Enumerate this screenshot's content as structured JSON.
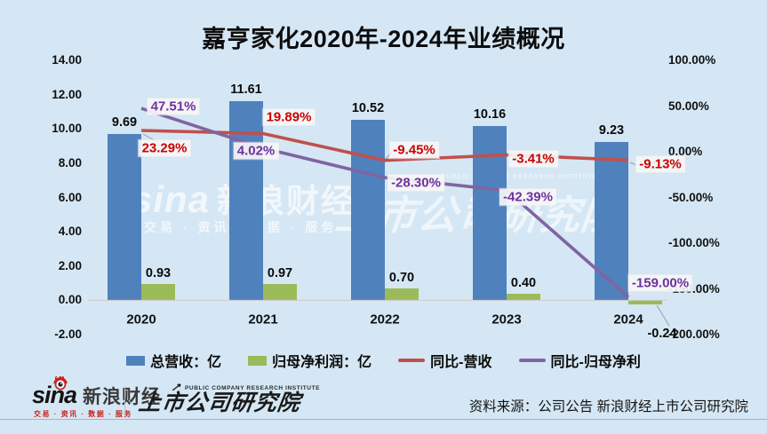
{
  "chart_data": {
    "type": "bar+line",
    "title": "嘉亨家化2020年-2024年业绩概况",
    "categories": [
      "2020",
      "2021",
      "2022",
      "2023",
      "2024"
    ],
    "left_axis": {
      "ticks": [
        "14.00",
        "12.00",
        "10.00",
        "8.00",
        "6.00",
        "4.00",
        "2.00",
        "0.00",
        "-2.00"
      ],
      "min": -2,
      "max": 14
    },
    "right_axis": {
      "ticks": [
        "100.00%",
        "50.00%",
        "0.00%",
        "-50.00%",
        "-100.00%",
        "-150.00%",
        "-200.00%"
      ],
      "min": -200,
      "max": 100
    },
    "legend_position": "bottom",
    "grid": false,
    "series": [
      {
        "name": "总营收：亿",
        "type": "bar",
        "axis": "left",
        "color": "#4f81bd",
        "values": [
          9.69,
          11.61,
          10.52,
          10.16,
          9.23
        ],
        "labels": [
          "9.69",
          "11.61",
          "10.52",
          "10.16",
          "9.23"
        ]
      },
      {
        "name": "归母净利润：亿",
        "type": "bar",
        "axis": "left",
        "color": "#9bbb59",
        "values": [
          0.93,
          0.97,
          0.7,
          0.4,
          -0.24
        ],
        "labels": [
          "0.93",
          "0.97",
          "0.70",
          "0.40",
          "-0.24"
        ]
      },
      {
        "name": "同比-营收",
        "type": "line",
        "axis": "right",
        "color": "#c0504d",
        "label_color": "#cc0000",
        "values": [
          23.29,
          19.89,
          -9.45,
          -3.41,
          -9.13
        ],
        "labels": [
          "23.29%",
          "19.89%",
          "-9.45%",
          "-3.41%",
          "-9.13%"
        ]
      },
      {
        "name": "同比-归母净利",
        "type": "line",
        "axis": "right",
        "color": "#8064a2",
        "label_color": "#7030a0",
        "values": [
          47.51,
          4.02,
          -28.3,
          -42.39,
          -159.0
        ],
        "labels": [
          "47.51%",
          "4.02%",
          "-28.30%",
          "-42.39%",
          "-159.00%"
        ]
      }
    ]
  },
  "watermark": {
    "sina_text": "sina",
    "brand": "新浪财经",
    "tagline": "交易 · 资讯 · 数据 · 服务",
    "institute_en": "PUBLIC COMPANY RESEARCH INSTITUTE",
    "institute": "上市公司研究院"
  },
  "footer": {
    "sina_text": "sina",
    "sina_brand": "新浪财经",
    "sina_tagline": "交易 · 资讯 · 数据 · 服务",
    "institute_en": "PUBLIC COMPANY RESEARCH INSTITUTE",
    "institute": "上市公司研究院",
    "source": "资料来源：公司公告 新浪财经上市公司研究院"
  },
  "colors": {
    "background": "#d5e7f4",
    "revenue_bar": "#4f81bd",
    "profit_bar": "#9bbb59",
    "yoy_revenue_line": "#c0504d",
    "yoy_profit_line": "#8064a2",
    "yoy_revenue_label": "#cc0000",
    "yoy_profit_label": "#7030a0",
    "axis_zero_line": "#cfc9c9",
    "footer_rule": "#a8b4bd"
  }
}
